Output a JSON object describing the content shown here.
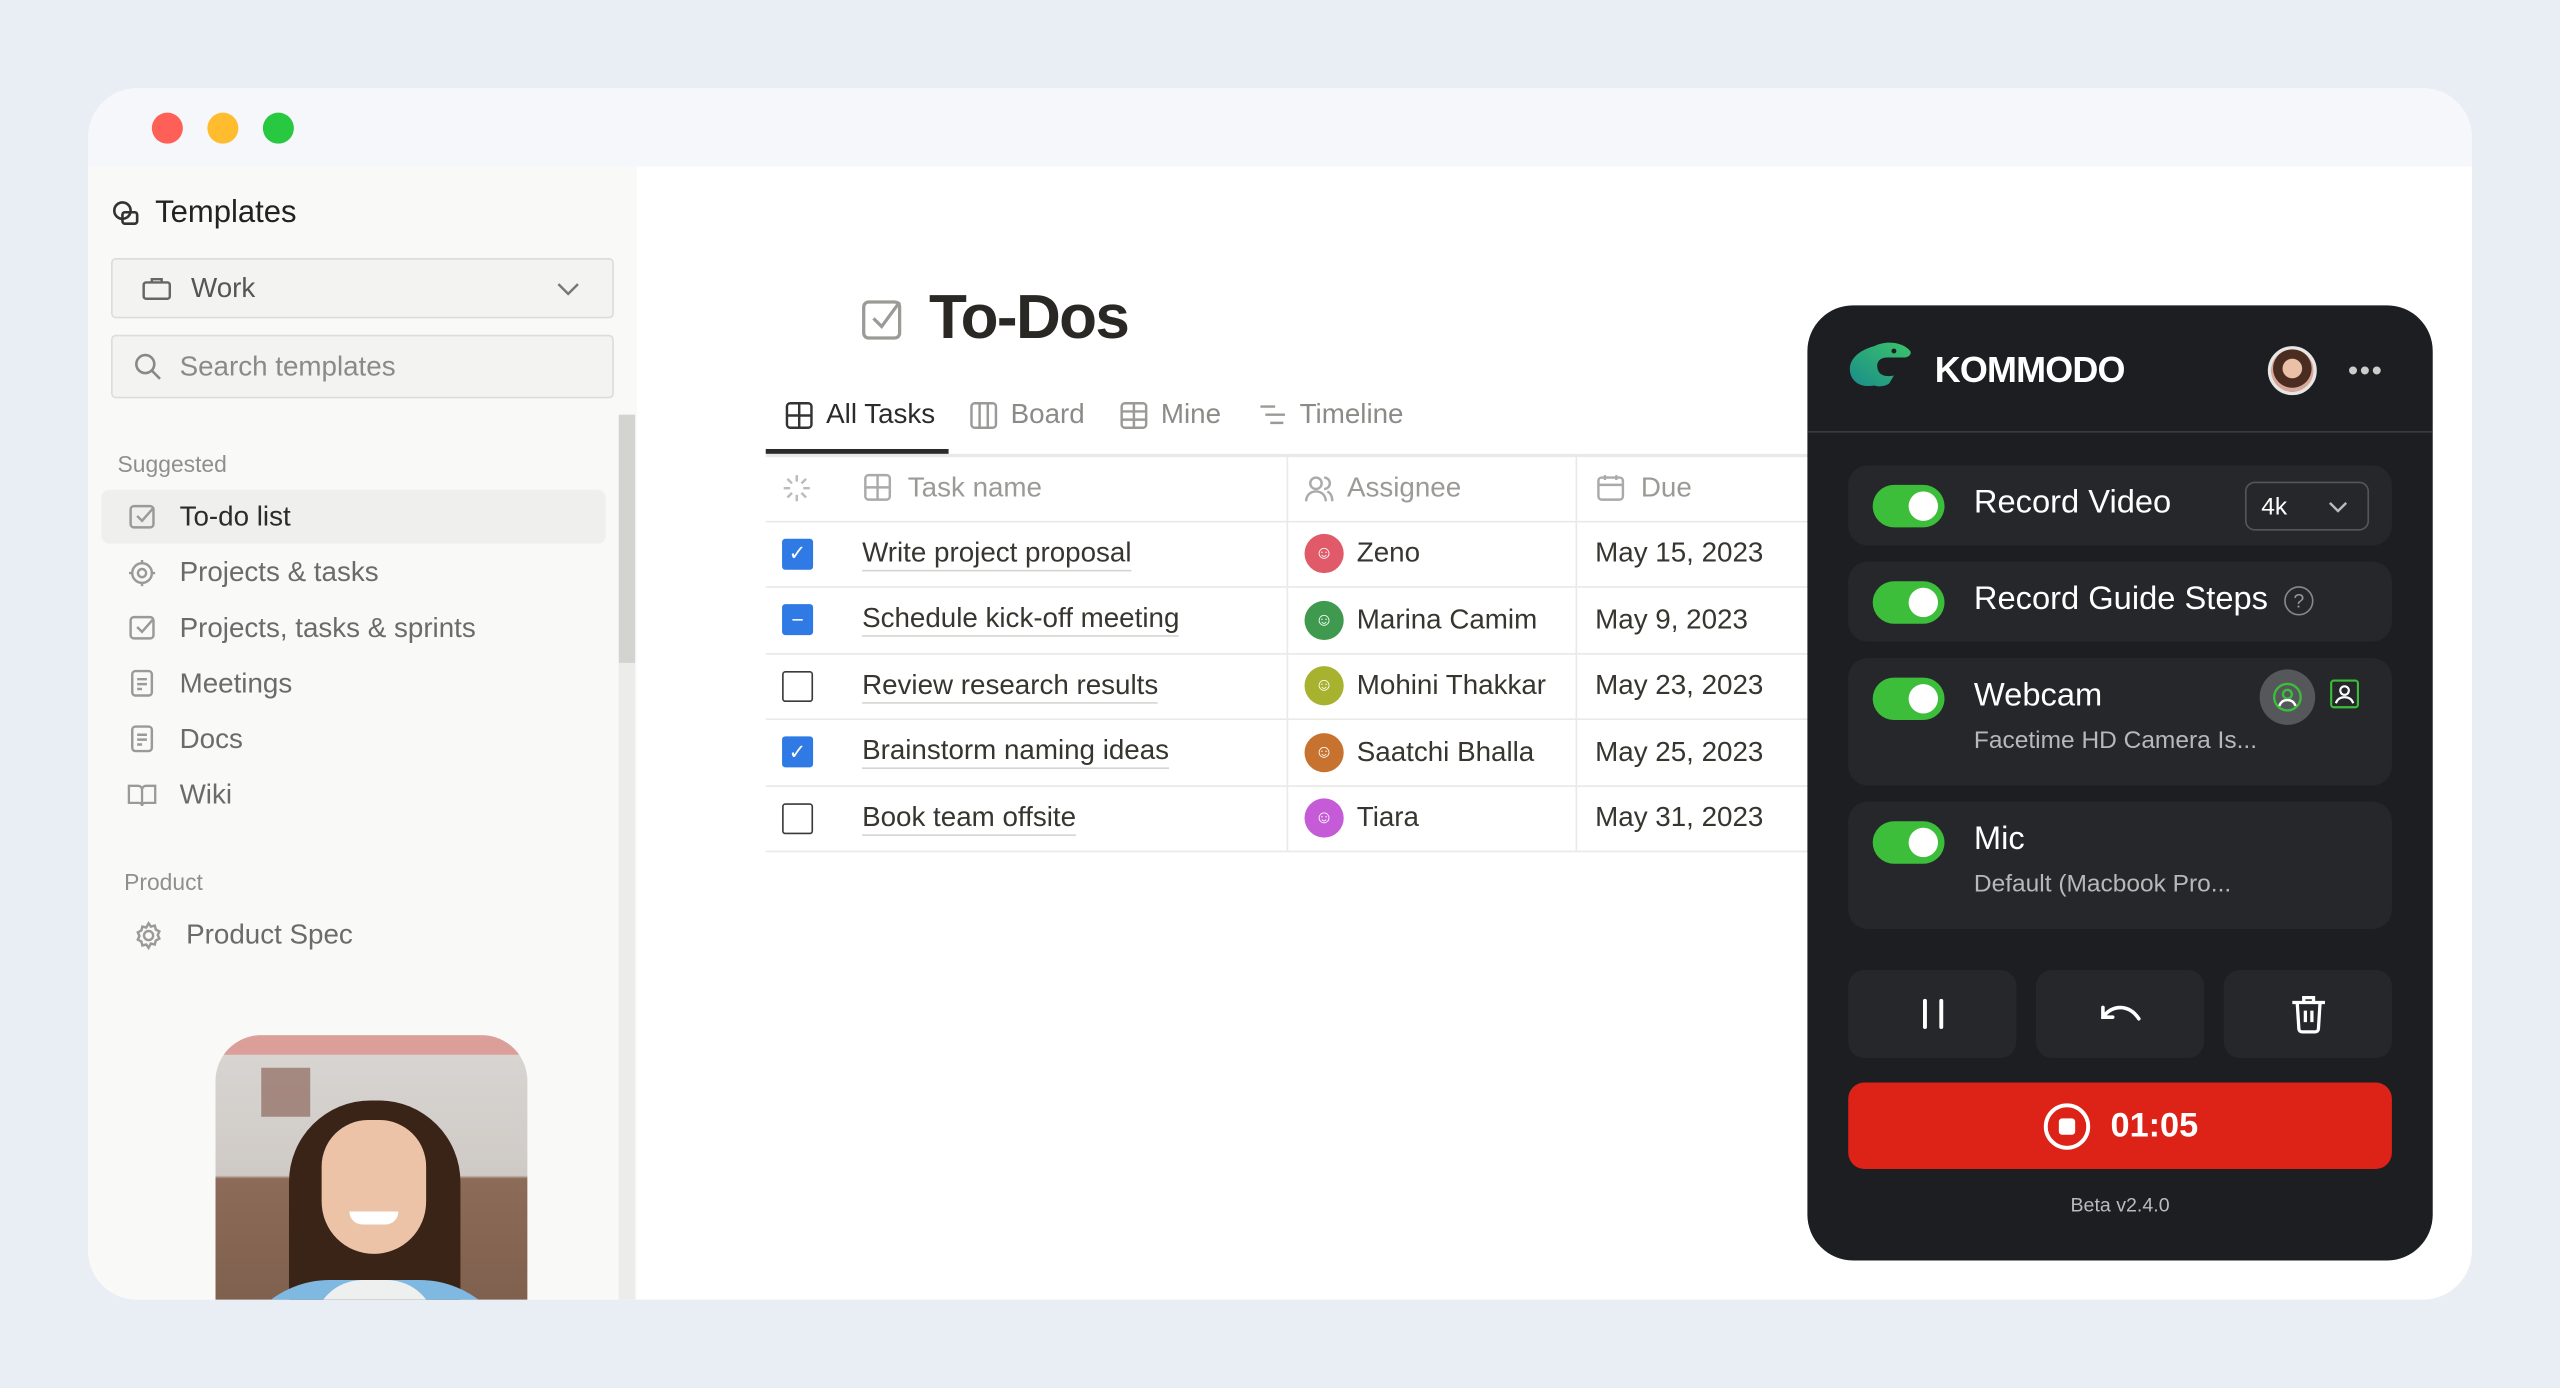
{
  "sidebar": {
    "title": "Templates",
    "workspace_select": "Work",
    "search_placeholder": "Search templates",
    "sections": [
      {
        "label": "Suggested",
        "items": [
          {
            "label": "To-do list",
            "icon": "checkbox-icon",
            "active": true
          },
          {
            "label": "Projects & tasks",
            "icon": "target-icon"
          },
          {
            "label": "Projects, tasks & sprints",
            "icon": "checkbox-icon"
          },
          {
            "label": "Meetings",
            "icon": "document-icon"
          },
          {
            "label": "Docs",
            "icon": "document-icon"
          },
          {
            "label": "Wiki",
            "icon": "book-icon"
          }
        ]
      },
      {
        "label": "Product",
        "items": [
          {
            "label": "Product Spec",
            "icon": "gear-icon"
          }
        ]
      }
    ]
  },
  "main": {
    "title": "To-Dos",
    "tabs": [
      {
        "label": "All Tasks",
        "icon": "table-icon",
        "active": true
      },
      {
        "label": "Board",
        "icon": "board-icon"
      },
      {
        "label": "Mine",
        "icon": "table-icon"
      },
      {
        "label": "Timeline",
        "icon": "timeline-icon"
      }
    ],
    "table": {
      "headers": {
        "task": "Task name",
        "assignee": "Assignee",
        "due": "Due"
      },
      "rows": [
        {
          "status": "checked",
          "task": "Write project proposal",
          "assignee": "Zeno",
          "avatar_color": "#e05a6a",
          "due": "May 15, 2023"
        },
        {
          "status": "indeterminate",
          "task": "Schedule kick-off meeting",
          "assignee": "Marina Camim",
          "avatar_color": "#3f9a4f",
          "due": "May 9, 2023"
        },
        {
          "status": "unchecked",
          "task": "Review research results",
          "assignee": "Mohini Thakkar",
          "avatar_color": "#a7b22f",
          "due": "May 23, 2023"
        },
        {
          "status": "checked",
          "task": "Brainstorm naming ideas",
          "assignee": "Saatchi Bhalla",
          "avatar_color": "#c7732f",
          "due": "May 25, 2023"
        },
        {
          "status": "unchecked",
          "task": "Book team offsite",
          "assignee": "Tiara",
          "avatar_color": "#c65bd8",
          "due": "May 31, 2023"
        }
      ]
    }
  },
  "recorder": {
    "brand": "KOMMODO",
    "record_video": {
      "label": "Record Video",
      "enabled": true,
      "quality": "4k"
    },
    "record_guide_steps": {
      "label": "Record Guide Steps",
      "enabled": true
    },
    "webcam": {
      "label": "Webcam",
      "enabled": true,
      "device": "Facetime HD Camera Is..."
    },
    "mic": {
      "label": "Mic",
      "enabled": true,
      "device": "Default (Macbook Pro..."
    },
    "timer": "01:05",
    "version": "Beta v2.4.0",
    "colors": {
      "accent_green": "#3cbe3a",
      "stop_red": "#dd2218",
      "panel_bg": "#1d1e21"
    }
  }
}
